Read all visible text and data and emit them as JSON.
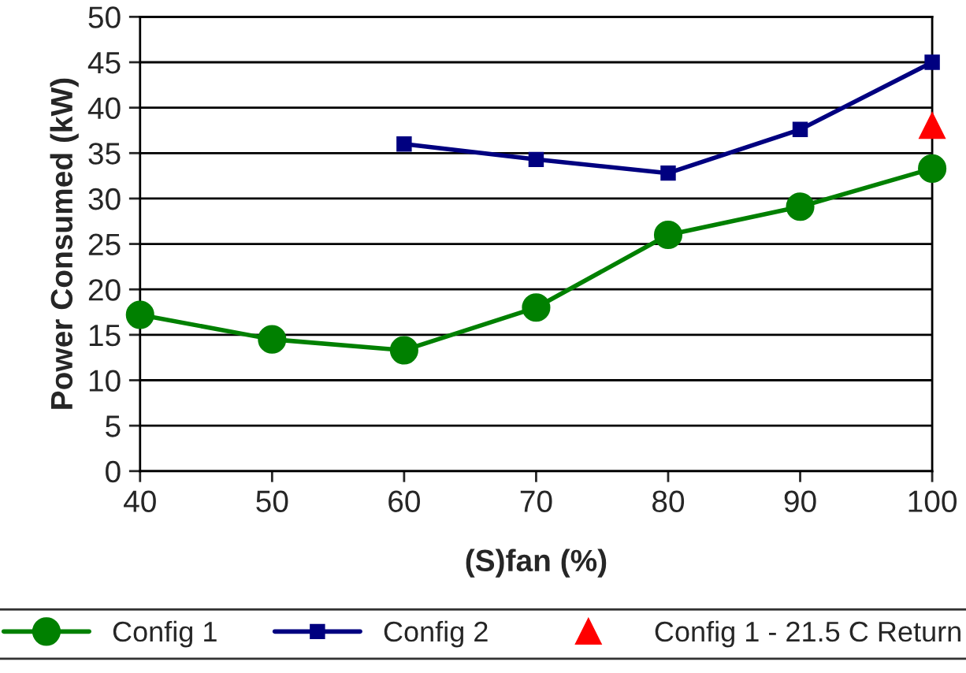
{
  "chart_data": {
    "type": "line",
    "xlabel": "(S)fan (%)",
    "ylabel": "Power Consumed (kW)",
    "xlim": [
      40,
      100
    ],
    "xticks": [
      40,
      50,
      60,
      70,
      80,
      90,
      100
    ],
    "ylim": [
      0,
      50
    ],
    "yticks": [
      0,
      5,
      10,
      15,
      20,
      25,
      30,
      35,
      40,
      45,
      50
    ],
    "grid": "y",
    "legend": "bottom",
    "series": [
      {
        "name": "Config 1",
        "color": "#008000",
        "marker": "circle",
        "x": [
          40,
          50,
          60,
          70,
          80,
          90,
          100
        ],
        "values": [
          17.2,
          14.5,
          13.3,
          18.0,
          26.0,
          29.1,
          33.3
        ]
      },
      {
        "name": "Config 2",
        "color": "#000080",
        "marker": "square",
        "x": [
          60,
          70,
          80,
          90,
          100
        ],
        "values": [
          36.0,
          34.3,
          32.8,
          37.6,
          45.0
        ]
      },
      {
        "name": "Config 1 - 21.5 C Return",
        "type": "scatter",
        "color": "#ff0000",
        "marker": "triangle",
        "x": [
          100
        ],
        "values": [
          38.0
        ]
      }
    ]
  }
}
